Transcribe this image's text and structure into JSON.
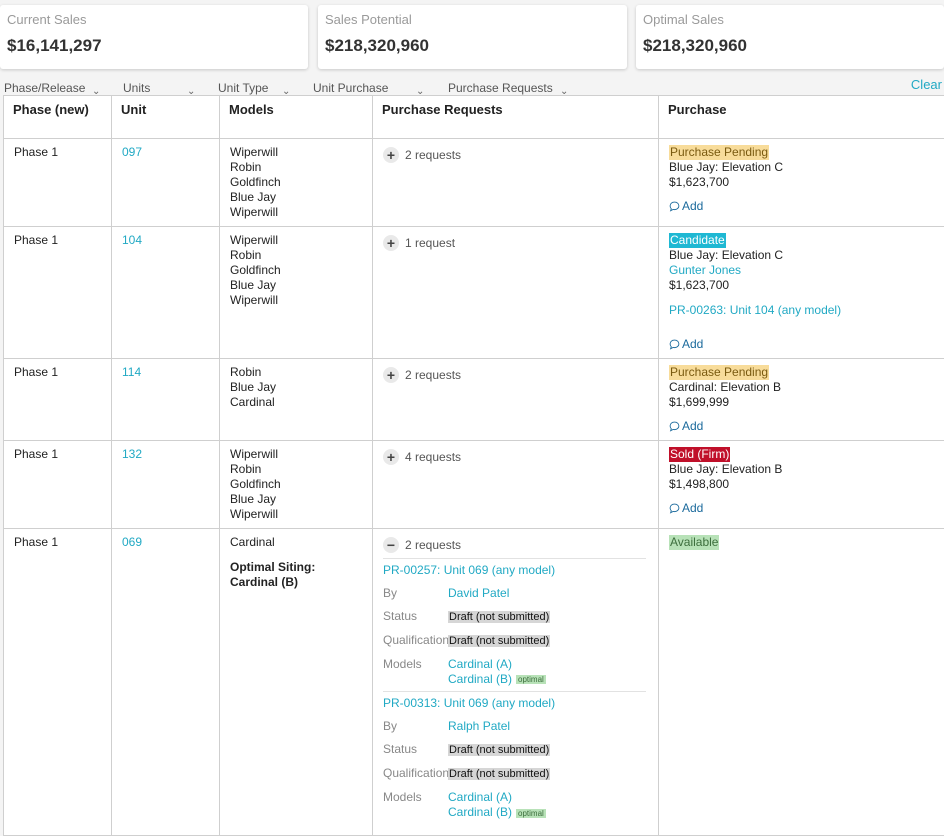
{
  "summary": {
    "current_sales": {
      "label": "Current Sales",
      "value": "$16,141,297"
    },
    "sales_potential": {
      "label": "Sales Potential",
      "value": "$218,320,960"
    },
    "optimal_sales": {
      "label": "Optimal Sales",
      "value": "$218,320,960"
    }
  },
  "filters": {
    "phase_release": "Phase/Release",
    "units": "Units",
    "unit_type": "Unit Type",
    "unit_purchase": "Unit Purchase",
    "purchase_requests": "Purchase Requests",
    "clear": "Clear"
  },
  "columns": {
    "phase": "Phase (new)",
    "unit": "Unit",
    "models": "Models",
    "purchase_requests": "Purchase Requests",
    "purchase": "Purchase"
  },
  "common": {
    "add": "Add",
    "by_label": "By",
    "status_label": "Status",
    "qualification_label": "Qualification",
    "models_label": "Models",
    "optimal_tag": "optimal",
    "optimal_siting_label": "Optimal Siting:"
  },
  "rows": [
    {
      "phase": "Phase 1",
      "unit": "097",
      "models": [
        "Wiperwill",
        "Robin",
        "Goldfinch",
        "Blue Jay",
        "Wiperwill"
      ],
      "requests_label": "2 requests",
      "purchase": {
        "status": "Purchase Pending",
        "model": "Blue Jay: Elevation C",
        "price": "$1,623,700"
      }
    },
    {
      "phase": "Phase 1",
      "unit": "104",
      "models": [
        "Wiperwill",
        "Robin",
        "Goldfinch",
        "Blue Jay",
        "Wiperwill"
      ],
      "requests_label": "1 request",
      "purchase": {
        "status": "Candidate",
        "model": "Blue Jay: Elevation C",
        "buyer": "Gunter Jones",
        "price": "$1,623,700",
        "pr_link": "PR-00263: Unit 104 (any model)"
      }
    },
    {
      "phase": "Phase 1",
      "unit": "114",
      "models": [
        "Robin",
        "Blue Jay",
        "Cardinal"
      ],
      "requests_label": "2 requests",
      "purchase": {
        "status": "Purchase Pending",
        "model": "Cardinal: Elevation B",
        "price": "$1,699,999"
      }
    },
    {
      "phase": "Phase 1",
      "unit": "132",
      "models": [
        "Wiperwill",
        "Robin",
        "Goldfinch",
        "Blue Jay",
        "Wiperwill"
      ],
      "requests_label": "4 requests",
      "purchase": {
        "status": "Sold (Firm)",
        "model": "Blue Jay: Elevation B",
        "price": "$1,498,800"
      }
    },
    {
      "phase": "Phase 1",
      "unit": "069",
      "models": [
        "Cardinal"
      ],
      "optimal_siting": "Cardinal (B)",
      "requests_label": "2 requests",
      "purchase": {
        "status": "Available"
      },
      "requests": [
        {
          "title": "PR-00257: Unit 069 (any model)",
          "by": "David Patel",
          "status": "Draft (not submitted)",
          "qualification": "Draft (not submitted)",
          "models": [
            "Cardinal (A)",
            "Cardinal (B)"
          ]
        },
        {
          "title": "PR-00313: Unit 069 (any model)",
          "by": "Ralph Patel",
          "status": "Draft (not submitted)",
          "qualification": "Draft (not submitted)",
          "models": [
            "Cardinal (A)",
            "Cardinal (B)"
          ]
        }
      ]
    }
  ]
}
